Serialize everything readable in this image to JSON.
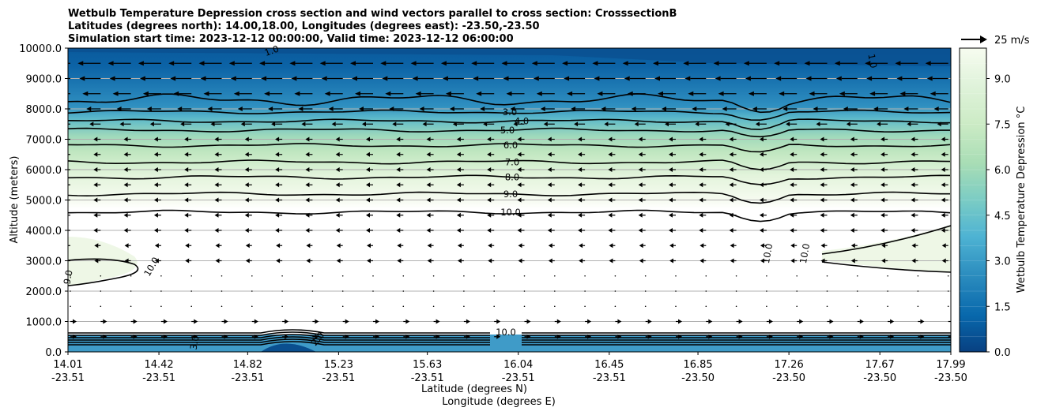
{
  "chart_data": {
    "type": "contour",
    "title_lines": [
      "Wetbulb Temperature Depression cross section and wind vectors parallel to cross section: CrosssectionB",
      "Latitudes (degrees north): 14.00,18.00, Longitudes (degrees east): -23.50,-23.50",
      "Simulation start time: 2023-12-12 00:00:00, Valid time: 2023-12-12 06:00:00"
    ],
    "ylabel": "Altitude (meters)",
    "xlabel_lat": "Latitude (degrees N)",
    "xlabel_lon": "Longitude (degrees E)",
    "ylim": [
      0,
      10000
    ],
    "yticks": [
      "0.0",
      "1000.0",
      "2000.0",
      "3000.0",
      "4000.0",
      "5000.0",
      "6000.0",
      "7000.0",
      "8000.0",
      "9000.0",
      "10000.0"
    ],
    "ytick_values": [
      0,
      1000,
      2000,
      3000,
      4000,
      5000,
      6000,
      7000,
      8000,
      9000,
      10000
    ],
    "xlim": [
      14.01,
      17.99
    ],
    "xticks_lat": [
      "14.01",
      "14.42",
      "14.82",
      "15.23",
      "15.63",
      "16.04",
      "16.45",
      "16.85",
      "17.26",
      "17.67",
      "17.99"
    ],
    "xticks_lon": [
      "-23.51",
      "-23.51",
      "-23.51",
      "-23.51",
      "-23.51",
      "-23.51",
      "-23.51",
      "-23.50",
      "-23.50",
      "-23.50",
      "-23.50"
    ],
    "xtick_values": [
      14.01,
      14.42,
      14.82,
      15.23,
      15.63,
      16.04,
      16.45,
      16.85,
      17.26,
      17.67,
      17.99
    ],
    "grid": "horizontal",
    "colorbar": {
      "label": "Wetbulb Temperature Depression °C",
      "range": [
        0,
        10
      ],
      "ticks": [
        "0.0",
        "1.5",
        "3.0",
        "4.5",
        "6.0",
        "7.5",
        "9.0"
      ],
      "tick_values": [
        0,
        1.5,
        3.0,
        4.5,
        6.0,
        7.5,
        9.0
      ],
      "colormap": "GnBu_r"
    },
    "wind_key": "25 m/s",
    "contour_levels": [
      {
        "level": 1.0,
        "label": "1.0",
        "alt": 8300
      },
      {
        "level": 3.0,
        "label": "3.0",
        "alt": 7900
      },
      {
        "level": 4.0,
        "label": "4.0",
        "alt": 7600
      },
      {
        "level": 5.0,
        "label": "5.0",
        "alt": 7300
      },
      {
        "level": 6.0,
        "label": "6.0",
        "alt": 6800
      },
      {
        "level": 7.0,
        "label": "7.0",
        "alt": 6250
      },
      {
        "level": 8.0,
        "label": "8.0",
        "alt": 5750
      },
      {
        "level": 9.0,
        "label": "9.0",
        "alt": 5200
      },
      {
        "level": 10.0,
        "label": "10.0",
        "alt": 4600
      }
    ],
    "extra_labels": [
      "10.0",
      "10.0",
      "10.0",
      "10.0",
      "9.0",
      "3.0",
      "2.0",
      "1.0",
      "1.0"
    ]
  }
}
